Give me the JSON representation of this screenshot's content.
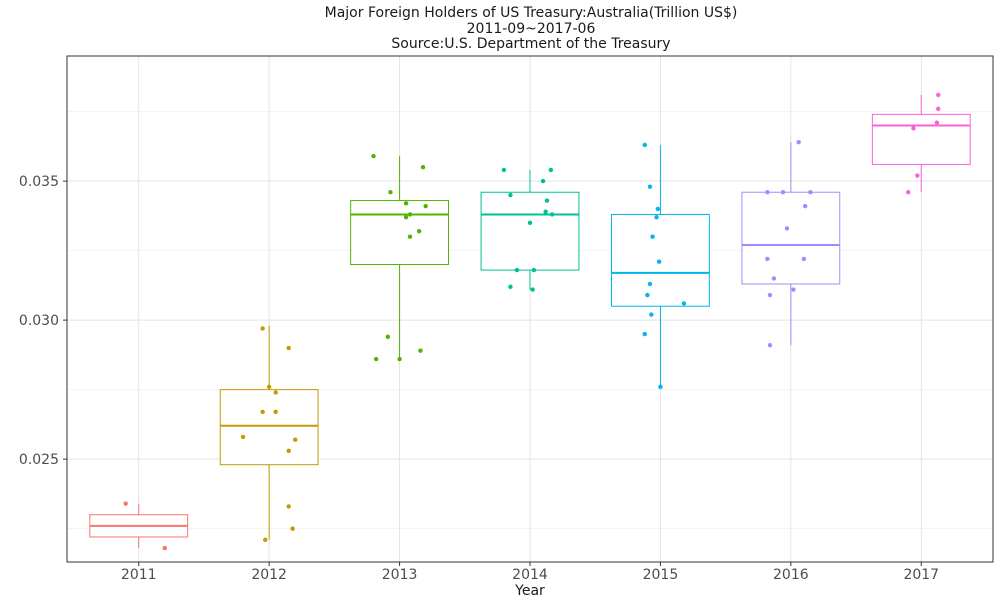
{
  "chart_data": {
    "type": "box",
    "title_lines": [
      "Major Foreign Holders of US Treasury:Australia(Trillion US$)",
      "2011-09~2017-06",
      "Source:U.S. Department of the Treasury"
    ],
    "xlabel": "Year",
    "ylabel": "",
    "categories": [
      "2011",
      "2012",
      "2013",
      "2014",
      "2015",
      "2016",
      "2017"
    ],
    "y_ticks": [
      0.025,
      0.03,
      0.035
    ],
    "y_tick_labels": [
      "0.025",
      "0.030",
      "0.035"
    ],
    "ylim": [
      0.0213,
      0.0395
    ],
    "grid": true,
    "legend": "none",
    "series": [
      {
        "category": "2011",
        "color": "#F8766D",
        "whisker_low": 0.0218,
        "q1": 0.0222,
        "median": 0.0226,
        "q3": 0.023,
        "whisker_high": 0.0234,
        "points": [
          [
            0.2,
            0.0218
          ],
          [
            -0.1,
            0.0234
          ]
        ]
      },
      {
        "category": "2012",
        "color": "#C49A00",
        "whisker_low": 0.0221,
        "q1": 0.0248,
        "median": 0.0262,
        "q3": 0.0275,
        "whisker_high": 0.0298,
        "points": [
          [
            -0.05,
            0.0297
          ],
          [
            0.15,
            0.029
          ],
          [
            0.0,
            0.0276
          ],
          [
            0.05,
            0.0274
          ],
          [
            -0.05,
            0.0267
          ],
          [
            0.05,
            0.0267
          ],
          [
            -0.2,
            0.0258
          ],
          [
            0.2,
            0.0257
          ],
          [
            0.15,
            0.0253
          ],
          [
            0.15,
            0.0233
          ],
          [
            0.18,
            0.0225
          ],
          [
            -0.03,
            0.0221
          ]
        ]
      },
      {
        "category": "2013",
        "color": "#53B400",
        "whisker_low": 0.0286,
        "q1": 0.032,
        "median": 0.0338,
        "q3": 0.0343,
        "whisker_high": 0.0359,
        "points": [
          [
            -0.2,
            0.0359
          ],
          [
            0.18,
            0.0355
          ],
          [
            -0.07,
            0.0346
          ],
          [
            0.05,
            0.0342
          ],
          [
            0.2,
            0.0341
          ],
          [
            0.08,
            0.0338
          ],
          [
            0.05,
            0.0337
          ],
          [
            0.15,
            0.0332
          ],
          [
            0.08,
            0.033
          ],
          [
            -0.09,
            0.0294
          ],
          [
            0.16,
            0.0289
          ],
          [
            -0.18,
            0.0286
          ],
          [
            0.0,
            0.0286
          ]
        ]
      },
      {
        "category": "2014",
        "color": "#00C094",
        "whisker_low": 0.0311,
        "q1": 0.0318,
        "median": 0.0338,
        "q3": 0.0346,
        "whisker_high": 0.0354,
        "points": [
          [
            -0.2,
            0.0354
          ],
          [
            0.16,
            0.0354
          ],
          [
            0.1,
            0.035
          ],
          [
            -0.15,
            0.0345
          ],
          [
            0.13,
            0.0343
          ],
          [
            0.12,
            0.0339
          ],
          [
            0.17,
            0.0338
          ],
          [
            0.0,
            0.0335
          ],
          [
            -0.1,
            0.0318
          ],
          [
            0.03,
            0.0318
          ],
          [
            -0.15,
            0.0312
          ],
          [
            0.02,
            0.0311
          ]
        ]
      },
      {
        "category": "2015",
        "color": "#00B6EB",
        "whisker_low": 0.0276,
        "q1": 0.0305,
        "median": 0.0317,
        "q3": 0.0338,
        "whisker_high": 0.0363,
        "points": [
          [
            -0.12,
            0.0363
          ],
          [
            -0.08,
            0.0348
          ],
          [
            -0.02,
            0.034
          ],
          [
            -0.03,
            0.0337
          ],
          [
            -0.06,
            0.033
          ],
          [
            -0.01,
            0.0321
          ],
          [
            -0.08,
            0.0313
          ],
          [
            -0.1,
            0.0309
          ],
          [
            0.18,
            0.0306
          ],
          [
            -0.07,
            0.0302
          ],
          [
            -0.12,
            0.0295
          ],
          [
            0.0,
            0.0276
          ]
        ]
      },
      {
        "category": "2016",
        "color": "#A58AFF",
        "whisker_low": 0.0291,
        "q1": 0.0313,
        "median": 0.0327,
        "q3": 0.0346,
        "whisker_high": 0.0364,
        "points": [
          [
            0.06,
            0.0364
          ],
          [
            -0.18,
            0.0346
          ],
          [
            -0.06,
            0.0346
          ],
          [
            0.15,
            0.0346
          ],
          [
            0.11,
            0.0341
          ],
          [
            -0.03,
            0.0333
          ],
          [
            -0.18,
            0.0322
          ],
          [
            0.1,
            0.0322
          ],
          [
            -0.13,
            0.0315
          ],
          [
            0.02,
            0.0311
          ],
          [
            -0.16,
            0.0309
          ],
          [
            -0.16,
            0.0291
          ]
        ]
      },
      {
        "category": "2017",
        "color": "#FB61D7",
        "whisker_low": 0.0346,
        "q1": 0.0356,
        "median": 0.037,
        "q3": 0.0374,
        "whisker_high": 0.0381,
        "points": [
          [
            0.13,
            0.0381
          ],
          [
            0.13,
            0.0376
          ],
          [
            0.12,
            0.0371
          ],
          [
            -0.06,
            0.0369
          ],
          [
            -0.03,
            0.0352
          ],
          [
            -0.1,
            0.0346
          ]
        ]
      }
    ]
  }
}
